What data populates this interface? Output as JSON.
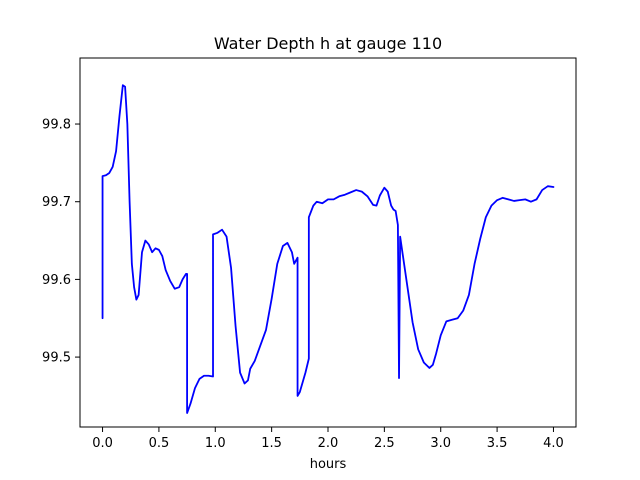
{
  "chart_data": {
    "type": "line",
    "title": "Water Depth h at gauge 110",
    "xlabel": "hours",
    "ylabel": "",
    "xlim": [
      -0.2,
      4.2
    ],
    "ylim": [
      99.41,
      99.885
    ],
    "xticks": [
      0.0,
      0.5,
      1.0,
      1.5,
      2.0,
      2.5,
      3.0,
      3.5,
      4.0
    ],
    "xtick_labels": [
      "0.0",
      "0.5",
      "1.0",
      "1.5",
      "2.0",
      "2.5",
      "3.0",
      "3.5",
      "4.0"
    ],
    "yticks": [
      99.5,
      99.6,
      99.7,
      99.8
    ],
    "ytick_labels": [
      "99.5",
      "99.6",
      "99.7",
      "99.8"
    ],
    "grid": false,
    "colors": {
      "line": "#0000ff",
      "axes": "#000000",
      "background": "#ffffff"
    },
    "series": [
      {
        "points": [
          [
            0.0,
            99.55
          ],
          [
            0.0,
            99.733
          ],
          [
            0.03,
            99.734
          ],
          [
            0.06,
            99.737
          ],
          [
            0.09,
            99.745
          ],
          [
            0.12,
            99.765
          ],
          [
            0.15,
            99.81
          ],
          [
            0.18,
            99.85
          ],
          [
            0.2,
            99.848
          ],
          [
            0.22,
            99.8
          ],
          [
            0.24,
            99.7
          ],
          [
            0.26,
            99.62
          ],
          [
            0.28,
            99.59
          ],
          [
            0.3,
            99.574
          ],
          [
            0.32,
            99.58
          ],
          [
            0.35,
            99.635
          ],
          [
            0.38,
            99.65
          ],
          [
            0.41,
            99.645
          ],
          [
            0.44,
            99.635
          ],
          [
            0.47,
            99.64
          ],
          [
            0.5,
            99.638
          ],
          [
            0.53,
            99.63
          ],
          [
            0.56,
            99.612
          ],
          [
            0.6,
            99.598
          ],
          [
            0.64,
            99.588
          ],
          [
            0.68,
            99.59
          ],
          [
            0.71,
            99.6
          ],
          [
            0.74,
            99.607
          ],
          [
            0.75,
            99.607
          ],
          [
            0.75,
            99.428
          ],
          [
            0.78,
            99.44
          ],
          [
            0.82,
            99.46
          ],
          [
            0.86,
            99.472
          ],
          [
            0.9,
            99.476
          ],
          [
            0.94,
            99.476
          ],
          [
            0.98,
            99.475
          ],
          [
            0.98,
            99.658
          ],
          [
            1.02,
            99.66
          ],
          [
            1.06,
            99.664
          ],
          [
            1.1,
            99.655
          ],
          [
            1.14,
            99.615
          ],
          [
            1.18,
            99.54
          ],
          [
            1.22,
            99.48
          ],
          [
            1.26,
            99.466
          ],
          [
            1.29,
            99.47
          ],
          [
            1.31,
            99.485
          ],
          [
            1.35,
            99.495
          ],
          [
            1.4,
            99.515
          ],
          [
            1.45,
            99.535
          ],
          [
            1.5,
            99.575
          ],
          [
            1.55,
            99.62
          ],
          [
            1.6,
            99.643
          ],
          [
            1.64,
            99.647
          ],
          [
            1.68,
            99.635
          ],
          [
            1.7,
            99.62
          ],
          [
            1.73,
            99.628
          ],
          [
            1.73,
            99.45
          ],
          [
            1.75,
            99.455
          ],
          [
            1.8,
            99.48
          ],
          [
            1.83,
            99.498
          ],
          [
            1.83,
            99.68
          ],
          [
            1.87,
            99.695
          ],
          [
            1.9,
            99.7
          ],
          [
            1.95,
            99.698
          ],
          [
            2.0,
            99.703
          ],
          [
            2.05,
            99.703
          ],
          [
            2.1,
            99.707
          ],
          [
            2.15,
            99.709
          ],
          [
            2.2,
            99.712
          ],
          [
            2.25,
            99.715
          ],
          [
            2.3,
            99.713
          ],
          [
            2.35,
            99.707
          ],
          [
            2.4,
            99.696
          ],
          [
            2.43,
            99.695
          ],
          [
            2.46,
            99.708
          ],
          [
            2.5,
            99.718
          ],
          [
            2.53,
            99.713
          ],
          [
            2.56,
            99.695
          ],
          [
            2.58,
            99.69
          ],
          [
            2.6,
            99.688
          ],
          [
            2.62,
            99.67
          ],
          [
            2.63,
            99.473
          ],
          [
            2.64,
            99.655
          ],
          [
            2.66,
            99.635
          ],
          [
            2.7,
            99.595
          ],
          [
            2.75,
            99.545
          ],
          [
            2.8,
            99.51
          ],
          [
            2.85,
            99.493
          ],
          [
            2.9,
            99.486
          ],
          [
            2.93,
            99.49
          ],
          [
            2.96,
            99.505
          ],
          [
            3.0,
            99.528
          ],
          [
            3.05,
            99.546
          ],
          [
            3.1,
            99.548
          ],
          [
            3.15,
            99.55
          ],
          [
            3.2,
            99.56
          ],
          [
            3.25,
            99.58
          ],
          [
            3.3,
            99.62
          ],
          [
            3.35,
            99.652
          ],
          [
            3.4,
            99.68
          ],
          [
            3.45,
            99.695
          ],
          [
            3.5,
            99.702
          ],
          [
            3.55,
            99.705
          ],
          [
            3.6,
            99.703
          ],
          [
            3.65,
            99.701
          ],
          [
            3.7,
            99.702
          ],
          [
            3.75,
            99.703
          ],
          [
            3.8,
            99.7
          ],
          [
            3.85,
            99.703
          ],
          [
            3.9,
            99.715
          ],
          [
            3.95,
            99.72
          ],
          [
            4.0,
            99.719
          ]
        ]
      }
    ]
  }
}
